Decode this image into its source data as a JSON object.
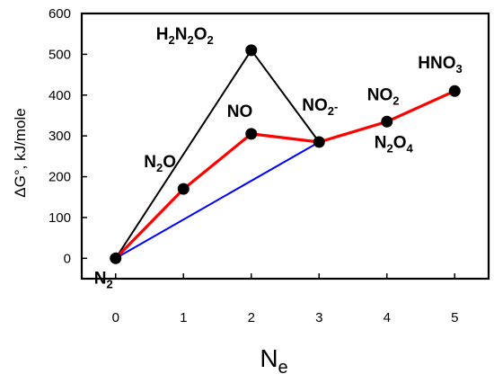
{
  "chart_data": {
    "type": "line",
    "ylabel": "ΔG°, kJ/mole",
    "xlabel": {
      "main": "N",
      "sub": "e"
    },
    "xlim": [
      -0.5,
      5.5
    ],
    "ylim": [
      -50,
      600
    ],
    "xticks": [
      0,
      1,
      2,
      3,
      4,
      5
    ],
    "yticks": [
      0,
      100,
      200,
      300,
      400,
      500,
      600
    ],
    "grid": false,
    "points": [
      {
        "x": 0,
        "y": 0,
        "label": [
          [
            "N",
            ""
          ],
          [
            "2",
            "sub"
          ]
        ]
      },
      {
        "x": 1,
        "y": 170,
        "label": [
          [
            "N",
            ""
          ],
          [
            "2",
            "sub"
          ],
          [
            "O",
            ""
          ]
        ]
      },
      {
        "x": 2,
        "y": 305,
        "label": [
          [
            "NO",
            ""
          ]
        ]
      },
      {
        "x": 2,
        "y": 510,
        "label": [
          [
            "H",
            ""
          ],
          [
            "2",
            "sub"
          ],
          [
            "N",
            ""
          ],
          [
            "2",
            "sub"
          ],
          [
            "O",
            ""
          ],
          [
            "2",
            "sub"
          ]
        ]
      },
      {
        "x": 3,
        "y": 285,
        "label": [
          [
            "NO",
            ""
          ],
          [
            "2",
            "sub"
          ],
          [
            "-",
            "sup"
          ]
        ]
      },
      {
        "x": 4,
        "y": 335,
        "label": [
          [
            "NO",
            ""
          ],
          [
            "2",
            "sub"
          ]
        ]
      },
      {
        "x": 4,
        "y": 335,
        "label": [
          [
            "N",
            ""
          ],
          [
            "2",
            "sub"
          ],
          [
            "O",
            ""
          ],
          [
            "4",
            "sub"
          ]
        ]
      },
      {
        "x": 5,
        "y": 410,
        "label": [
          [
            "HNO",
            ""
          ],
          [
            "3",
            "sub"
          ]
        ]
      }
    ],
    "series": [
      {
        "color": "#0000ff",
        "x": [
          0,
          3
        ],
        "y": [
          0,
          285
        ]
      },
      {
        "color": "#000000",
        "x": [
          0,
          2,
          3
        ],
        "y": [
          0,
          510,
          285
        ]
      },
      {
        "color": "#ff0000",
        "x": [
          0,
          1,
          2,
          3,
          4,
          5
        ],
        "y": [
          0,
          170,
          305,
          285,
          335,
          410
        ]
      }
    ]
  }
}
